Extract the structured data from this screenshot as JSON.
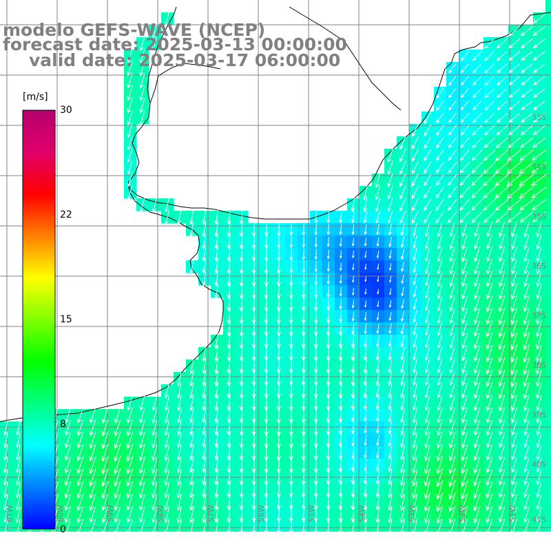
{
  "title": {
    "line1": "modelo GEFS-WAVE (NCEP)",
    "line2": "forecast date: 2025-03-13 00:00:00",
    "line3": "valid date: 2025-03-17 06:00:00"
  },
  "colorbar": {
    "unit": "[m/s]",
    "ticks": [
      "30",
      "22",
      "15",
      "8",
      "0"
    ],
    "tick_values": [
      30,
      22,
      15,
      8,
      0
    ],
    "range": [
      0,
      30
    ],
    "colors": [
      "#0000ff",
      "#0080ff",
      "#00ffff",
      "#00ff80",
      "#00ff00",
      "#80ff00",
      "#ffff00",
      "#ff8000",
      "#ff0000",
      "#e0006a",
      "#b4006e"
    ]
  },
  "grid": {
    "lat_labels": [
      "33S",
      "34S",
      "35S",
      "36S",
      "37S",
      "38S",
      "39S",
      "40S",
      "41S"
    ],
    "lon_labels": [
      "61W",
      "60W",
      "59W",
      "58W",
      "57W",
      "56W",
      "55W",
      "54W",
      "53W",
      "52W",
      "51W"
    ],
    "line_color": "#808080"
  },
  "map": {
    "region": "Rio de la Plata / South Atlantic",
    "field": "10 m wind speed with wind direction arrows",
    "prevailing_wind_direction": "from the north / north-east",
    "ocean_speed_range_ms": [
      2,
      12
    ],
    "land_color": "#ffffff",
    "coast_color": "#000000",
    "arrow_color": "#ffffff"
  }
}
